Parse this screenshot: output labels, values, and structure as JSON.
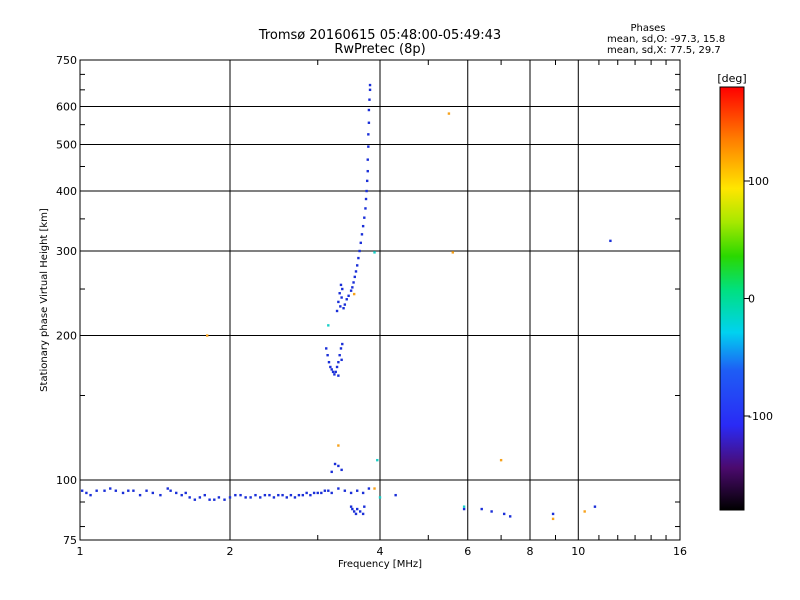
{
  "chart_data": {
    "type": "scatter",
    "title": "Tromsø 20160615 05:48:00-05:49:43",
    "subtitle": "RwPretec (8p)",
    "xlabel": "Frequency [MHz]",
    "ylabel": "Stationary phase Virtual Height [km]",
    "x_scale": "log",
    "y_scale": "log",
    "xlim": [
      1,
      16
    ],
    "ylim": [
      75,
      750
    ],
    "x_ticks": [
      "1",
      "2",
      "4",
      "6",
      "8",
      "10",
      "16"
    ],
    "x_tick_values": [
      1,
      2,
      4,
      6,
      8,
      10,
      16
    ],
    "y_ticks": [
      "75",
      "100",
      "200",
      "300",
      "400",
      "500",
      "600",
      "750"
    ],
    "y_tick_values": [
      75,
      100,
      200,
      300,
      400,
      500,
      600,
      750
    ],
    "grid": true,
    "legend": {
      "title": "Phases",
      "lines": [
        "mean, sd,O: -97.3, 15.8",
        "mean, sd,X:  77.5, 29.7"
      ],
      "placement": "top-right"
    },
    "colorbar": {
      "label": "[deg]",
      "ticks": [
        "100",
        "0",
        "-100"
      ],
      "tick_values": [
        100,
        0,
        -100
      ],
      "range": [
        -180,
        180
      ]
    },
    "point_color_default": "#1a2fd8",
    "series": [
      {
        "points": [
          [
            1.01,
            95
          ],
          [
            1.03,
            94
          ],
          [
            1.05,
            93
          ],
          [
            1.08,
            95
          ],
          [
            1.12,
            95
          ],
          [
            1.15,
            96
          ],
          [
            1.18,
            95
          ],
          [
            1.22,
            94
          ],
          [
            1.25,
            95
          ],
          [
            1.28,
            95
          ],
          [
            1.32,
            93
          ],
          [
            1.36,
            95
          ],
          [
            1.4,
            94
          ],
          [
            1.45,
            93
          ],
          [
            1.5,
            96
          ],
          [
            1.52,
            95
          ],
          [
            1.56,
            94
          ],
          [
            1.6,
            93
          ],
          [
            1.63,
            94
          ],
          [
            1.66,
            92
          ],
          [
            1.7,
            91
          ],
          [
            1.74,
            92
          ],
          [
            1.78,
            93
          ],
          [
            1.82,
            91
          ],
          [
            1.86,
            91
          ],
          [
            1.9,
            92
          ],
          [
            1.95,
            91
          ],
          [
            2.0,
            92
          ],
          [
            2.05,
            93
          ],
          [
            2.1,
            93
          ],
          [
            2.15,
            92
          ],
          [
            2.2,
            92
          ],
          [
            2.25,
            93
          ],
          [
            2.3,
            92
          ],
          [
            2.35,
            93
          ],
          [
            2.4,
            93
          ],
          [
            2.45,
            92
          ],
          [
            2.5,
            93
          ],
          [
            2.55,
            93
          ],
          [
            2.6,
            92
          ],
          [
            2.65,
            93
          ],
          [
            2.7,
            92
          ],
          [
            2.75,
            93
          ],
          [
            2.8,
            93
          ],
          [
            2.85,
            94
          ],
          [
            2.9,
            93
          ],
          [
            2.95,
            94
          ],
          [
            3.0,
            94
          ],
          [
            3.05,
            94
          ],
          [
            3.1,
            95
          ],
          [
            3.15,
            95
          ],
          [
            3.2,
            94
          ],
          [
            3.3,
            96
          ],
          [
            3.4,
            95
          ],
          [
            3.5,
            94
          ],
          [
            3.6,
            95
          ],
          [
            3.7,
            94
          ],
          [
            3.8,
            96
          ],
          [
            3.5,
            88
          ],
          [
            3.52,
            87
          ],
          [
            3.55,
            86
          ],
          [
            3.58,
            85
          ],
          [
            3.6,
            87
          ],
          [
            3.65,
            86
          ],
          [
            3.7,
            85
          ],
          [
            3.72,
            88
          ],
          [
            3.2,
            104
          ],
          [
            3.25,
            108
          ],
          [
            3.3,
            107
          ],
          [
            3.35,
            105
          ],
          [
            3.12,
            188
          ],
          [
            3.14,
            182
          ],
          [
            3.16,
            176
          ],
          [
            3.18,
            172
          ],
          [
            3.2,
            170
          ],
          [
            3.22,
            168
          ],
          [
            3.24,
            166
          ],
          [
            3.26,
            168
          ],
          [
            3.28,
            172
          ],
          [
            3.3,
            176
          ],
          [
            3.32,
            182
          ],
          [
            3.34,
            188
          ],
          [
            3.36,
            192
          ],
          [
            3.35,
            178
          ],
          [
            3.3,
            165
          ],
          [
            3.28,
            225
          ],
          [
            3.3,
            235
          ],
          [
            3.32,
            245
          ],
          [
            3.34,
            255
          ],
          [
            3.36,
            250
          ],
          [
            3.35,
            240
          ],
          [
            3.33,
            230
          ],
          [
            3.38,
            228
          ],
          [
            3.4,
            232
          ],
          [
            3.43,
            238
          ],
          [
            3.46,
            242
          ],
          [
            3.5,
            248
          ],
          [
            3.52,
            252
          ],
          [
            3.54,
            258
          ],
          [
            3.56,
            265
          ],
          [
            3.58,
            272
          ],
          [
            3.6,
            280
          ],
          [
            3.62,
            290
          ],
          [
            3.64,
            300
          ],
          [
            3.66,
            312
          ],
          [
            3.68,
            325
          ],
          [
            3.7,
            338
          ],
          [
            3.72,
            352
          ],
          [
            3.74,
            368
          ],
          [
            3.75,
            385
          ],
          [
            3.76,
            400
          ],
          [
            3.77,
            420
          ],
          [
            3.78,
            440
          ],
          [
            3.78,
            465
          ],
          [
            3.79,
            495
          ],
          [
            3.79,
            525
          ],
          [
            3.8,
            555
          ],
          [
            3.8,
            590
          ],
          [
            3.81,
            620
          ],
          [
            3.82,
            650
          ],
          [
            3.82,
            665
          ],
          [
            4.3,
            93
          ],
          [
            5.9,
            87
          ],
          [
            6.4,
            87
          ],
          [
            6.7,
            86
          ],
          [
            7.1,
            85
          ],
          [
            7.3,
            84
          ],
          [
            8.9,
            85
          ],
          [
            10.8,
            88
          ],
          [
            11.6,
            315
          ]
        ]
      },
      {
        "points": [
          [
            1.8,
            200
          ],
          [
            5.5,
            580
          ],
          [
            5.6,
            298
          ],
          [
            7.0,
            110
          ],
          [
            8.9,
            83
          ],
          [
            10.3,
            86
          ],
          [
            3.55,
            244
          ],
          [
            3.9,
            96
          ],
          [
            3.3,
            118
          ]
        ],
        "color": "#f7a21c"
      },
      {
        "points": [
          [
            3.9,
            298
          ],
          [
            5.9,
            88
          ],
          [
            3.95,
            110
          ],
          [
            3.15,
            210
          ],
          [
            4.0,
            92
          ]
        ],
        "color": "#19d0c8"
      }
    ]
  }
}
